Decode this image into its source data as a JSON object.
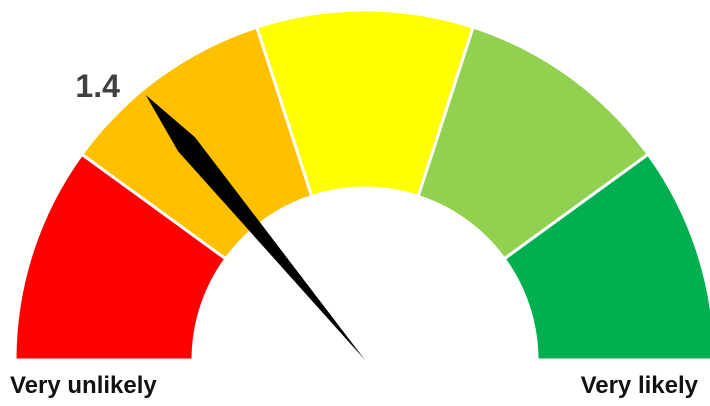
{
  "chart_data": {
    "type": "gauge",
    "value": 1.4,
    "value_label": "1.4",
    "min": 0,
    "max": 5,
    "bands": [
      {
        "from": 0,
        "to": 1,
        "color": "#ff0000"
      },
      {
        "from": 1,
        "to": 2,
        "color": "#ffc000"
      },
      {
        "from": 2,
        "to": 3,
        "color": "#ffff00"
      },
      {
        "from": 3,
        "to": 4,
        "color": "#92d050"
      },
      {
        "from": 4,
        "to": 5,
        "color": "#00b050"
      }
    ],
    "min_label": "Very unlikely",
    "max_label": "Very likely",
    "needle_color": "#000000",
    "value_label_color": "#404040",
    "separator_color": "#ffffff"
  }
}
